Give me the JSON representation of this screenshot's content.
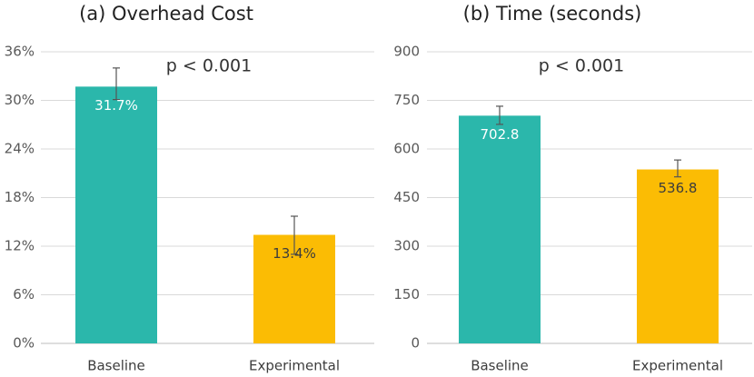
{
  "chart_data": [
    {
      "type": "bar",
      "title": "(a) Overhead Cost",
      "annotation": "p < 0.001",
      "categories": [
        "Baseline",
        "Experimental"
      ],
      "values": [
        31.7,
        13.4
      ],
      "value_labels": [
        "31.7%",
        "13.4%"
      ],
      "error_high": [
        34.0,
        15.7
      ],
      "error_low": [
        30.1,
        11.0
      ],
      "colors": [
        "#2bb7ab",
        "#fbbc04"
      ],
      "value_label_colors": [
        "#ffffff",
        "#3c3c3c"
      ],
      "ylim": [
        0,
        36
      ],
      "yticks": [
        0,
        6,
        12,
        18,
        24,
        30,
        36
      ],
      "ytick_labels": [
        "0%",
        "6%",
        "12%",
        "18%",
        "24%",
        "30%",
        "36%"
      ],
      "grid": true,
      "xlabel": "",
      "ylabel": ""
    },
    {
      "type": "bar",
      "title": "(b) Time (seconds)",
      "annotation": "p < 0.001",
      "categories": [
        "Baseline",
        "Experimental"
      ],
      "values": [
        702.8,
        536.8
      ],
      "value_labels": [
        "702.8",
        "536.8"
      ],
      "error_high": [
        732,
        566
      ],
      "error_low": [
        676,
        514
      ],
      "colors": [
        "#2bb7ab",
        "#fbbc04"
      ],
      "value_label_colors": [
        "#ffffff",
        "#3c3c3c"
      ],
      "ylim": [
        0,
        900
      ],
      "yticks": [
        0,
        150,
        300,
        450,
        600,
        750,
        900
      ],
      "ytick_labels": [
        "0",
        "150",
        "300",
        "450",
        "600",
        "750",
        "900"
      ],
      "grid": true,
      "xlabel": "",
      "ylabel": ""
    }
  ]
}
